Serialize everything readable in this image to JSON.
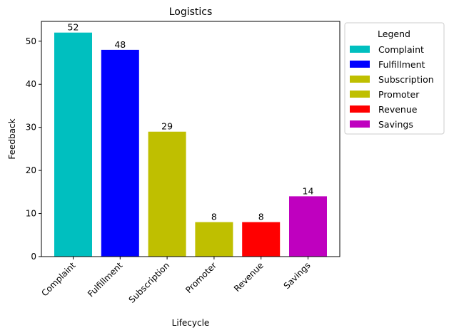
{
  "chart_data": {
    "type": "bar",
    "title": "Logistics",
    "xlabel": "Lifecycle",
    "ylabel": "Feedback",
    "categories": [
      "Complaint",
      "Fulfillment",
      "Subscription",
      "Promoter",
      "Revenue",
      "Savings"
    ],
    "values": [
      52,
      48,
      29,
      8,
      8,
      14
    ],
    "colors": [
      "#00bfbf",
      "#0000ff",
      "#bfbf00",
      "#bfbf00",
      "#ff0000",
      "#bf00bf"
    ],
    "ylim": [
      0,
      54.6
    ],
    "yticks": [
      0,
      10,
      20,
      30,
      40,
      50
    ],
    "grid": false,
    "legend": {
      "title": "Legend",
      "placement": "outside-top-right",
      "entries": [
        "Complaint",
        "Fulfillment",
        "Subscription",
        "Promoter",
        "Revenue",
        "Savings"
      ]
    }
  }
}
